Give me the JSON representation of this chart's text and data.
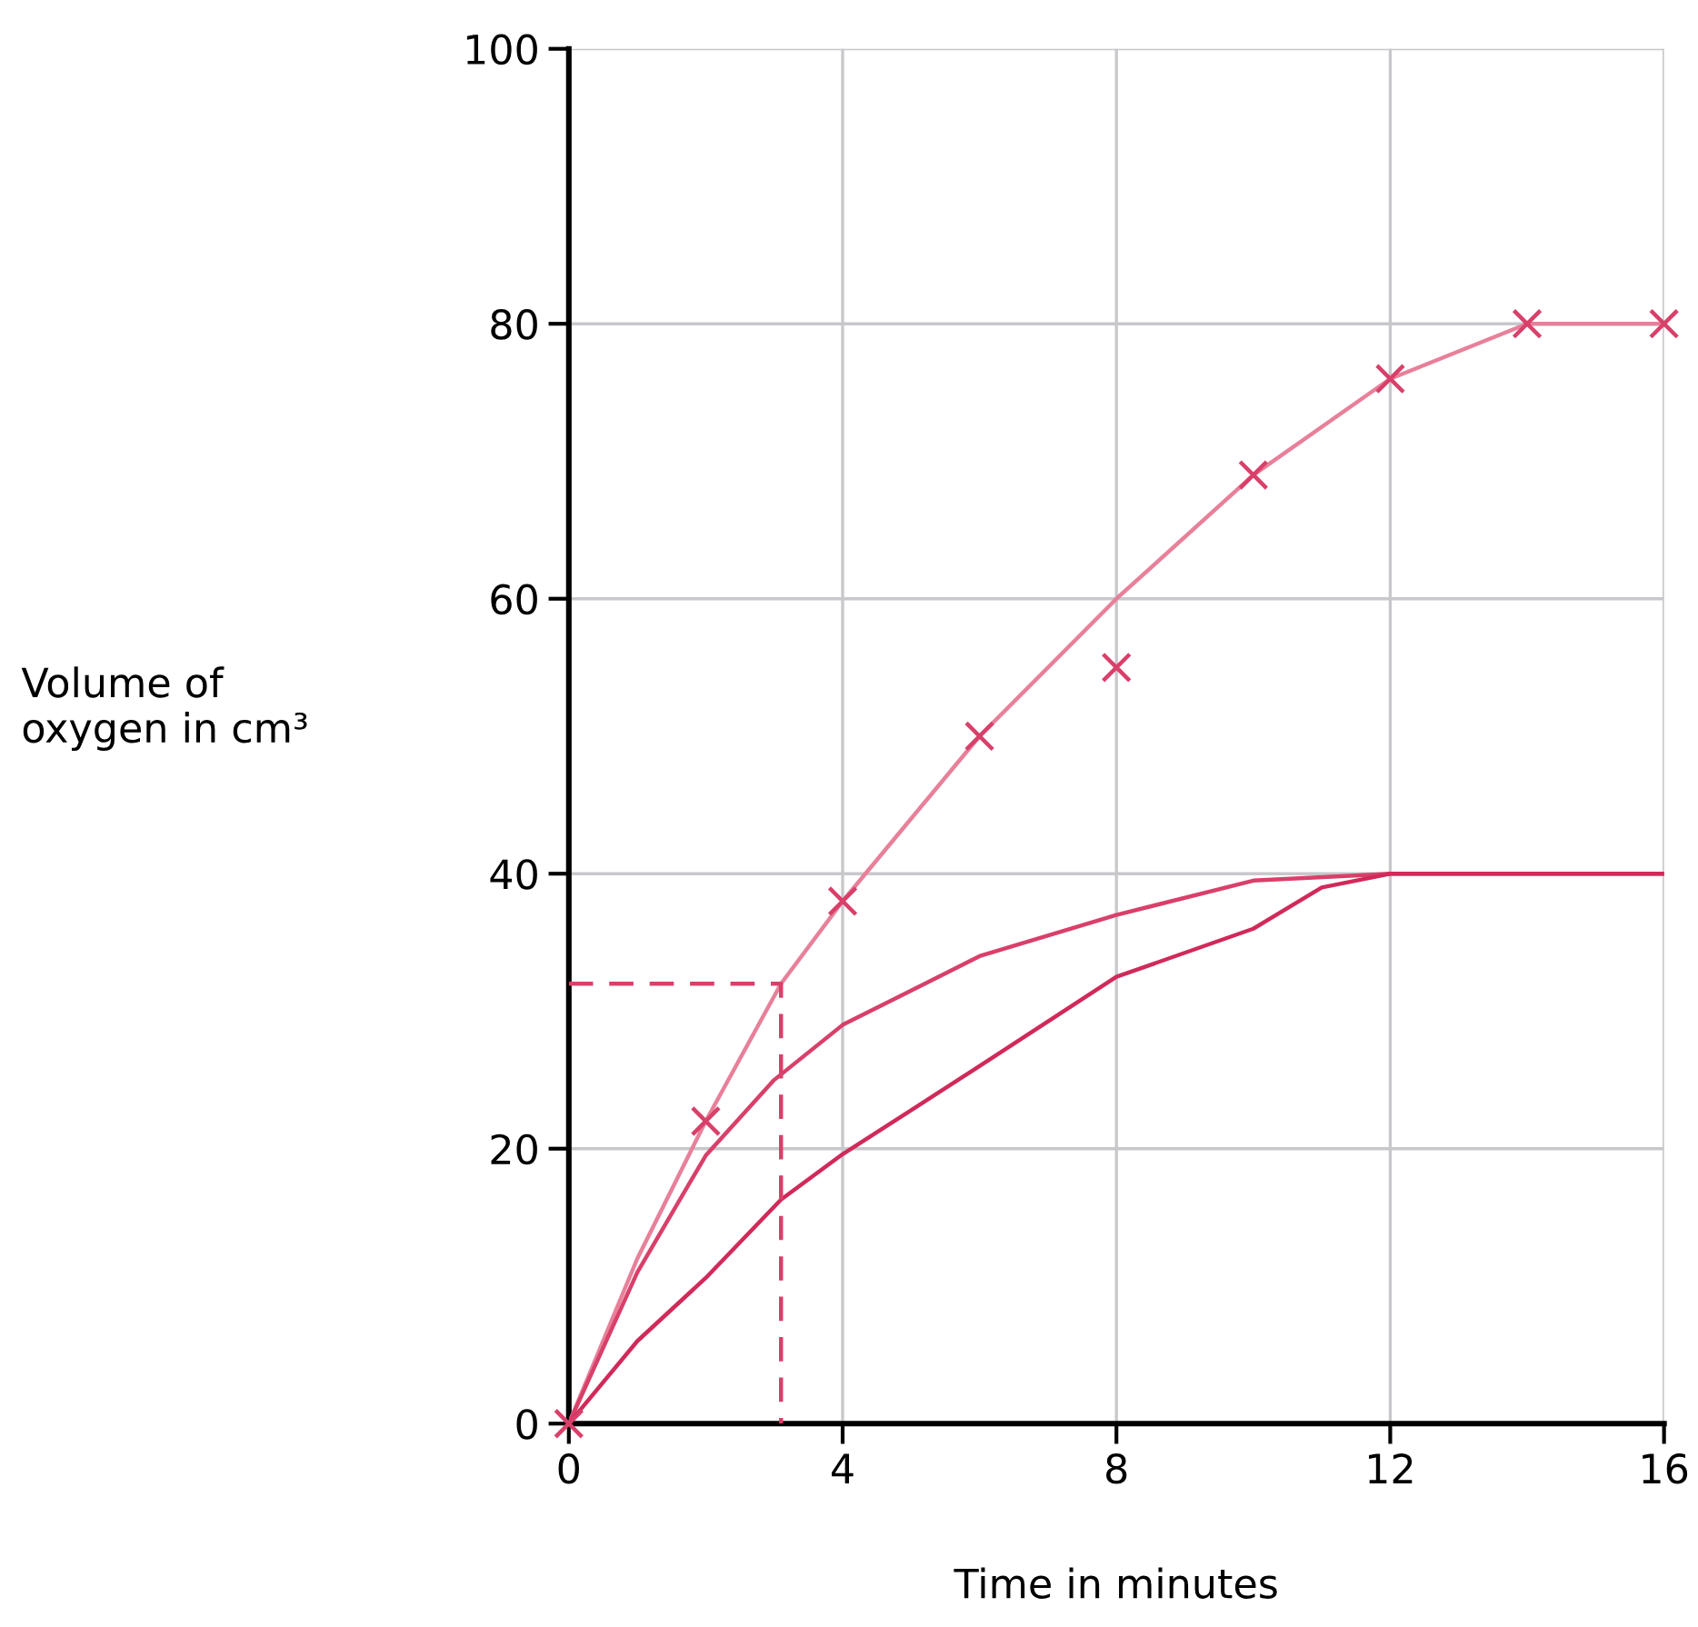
{
  "chart_data": {
    "type": "line",
    "xlabel": "Time in minutes",
    "ylabel": "Volume of\noxygen in cm³",
    "xlim": [
      0,
      16
    ],
    "ylim": [
      0,
      100
    ],
    "xticks": [
      0,
      4,
      8,
      12,
      16
    ],
    "yticks": [
      0,
      20,
      40,
      60,
      80,
      100
    ],
    "grid": true,
    "series": [
      {
        "type": "scatter",
        "marker": "cross",
        "color": "#d8406a",
        "x": [
          0,
          2,
          4,
          6,
          8,
          10,
          12,
          14,
          16
        ],
        "values": [
          0,
          22,
          38,
          50,
          55,
          69,
          76,
          80,
          80
        ]
      },
      {
        "marker": "none",
        "line_style": "solid",
        "color": "#e8809a",
        "x": [
          0,
          1,
          2,
          3.1,
          4,
          6,
          8,
          10,
          12,
          14,
          16
        ],
        "values": [
          0,
          12,
          22,
          32,
          38,
          50,
          60,
          69,
          76,
          80,
          80
        ]
      },
      {
        "marker": "none",
        "line_style": "solid",
        "color": "#d8406a",
        "x": [
          0,
          1,
          2,
          3,
          4,
          6,
          8,
          10,
          12,
          14,
          16
        ],
        "values": [
          0,
          11,
          19.5,
          25,
          29,
          34,
          37,
          39.5,
          40,
          40,
          40
        ]
      },
      {
        "marker": "none",
        "line_style": "solid",
        "color": "#d02a5a",
        "x": [
          0,
          1,
          2,
          3.1,
          4,
          6,
          8,
          10,
          11,
          12,
          14,
          16
        ],
        "values": [
          0,
          6,
          10.6,
          16.3,
          19.6,
          26,
          32.5,
          36,
          39,
          40,
          40,
          40
        ]
      },
      {
        "marker": "none",
        "line_style": "dashed",
        "color": "#d8406a",
        "x": [
          0,
          3.1,
          3.1
        ],
        "values": [
          32,
          32,
          0
        ]
      }
    ]
  }
}
